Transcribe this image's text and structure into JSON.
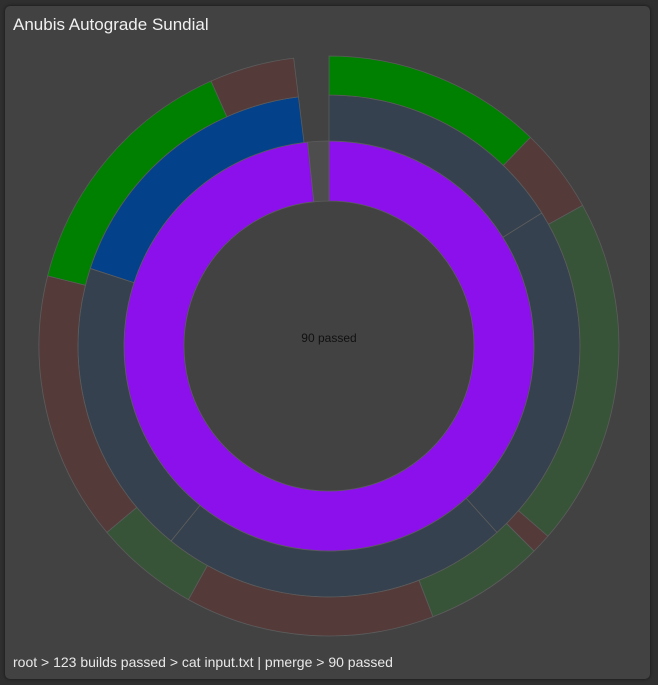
{
  "app": {
    "title": "Anubis Autograde Sundial"
  },
  "breadcrumb": "root > 123 builds passed > cat input.txt | pmerge > 90 passed",
  "center_label": "90 passed",
  "colors": {
    "passed_group": "#8b10ec",
    "build_blue": "#03418a",
    "slate": "#35414e",
    "pass_green": "#008000",
    "fail_red": "#553a3a",
    "muted_green": "#385438",
    "gap_gray": "#4d4d4d"
  },
  "chart_data": {
    "type": "sunburst",
    "title": "Anubis Autograde Sundial",
    "rings": [
      {
        "level": 1,
        "segments": [
          {
            "label": "90 passed",
            "start_deg": 0,
            "end_deg": 354,
            "color": "#8b10ec"
          },
          {
            "label": "",
            "start_deg": 354,
            "end_deg": 360,
            "color": "#4d4d4d"
          }
        ]
      },
      {
        "level": 2,
        "segments": [
          {
            "label": "",
            "start_deg": 0,
            "end_deg": 58,
            "color": "#35414e"
          },
          {
            "label": "",
            "start_deg": 58,
            "end_deg": 138,
            "color": "#35414e"
          },
          {
            "label": "",
            "start_deg": 138,
            "end_deg": 219,
            "color": "#35414e"
          },
          {
            "label": "",
            "start_deg": 219,
            "end_deg": 288,
            "color": "#35414e"
          },
          {
            "label": "",
            "start_deg": 288,
            "end_deg": 353,
            "color": "#03418a"
          }
        ]
      },
      {
        "level": 3,
        "segments": [
          {
            "label": "",
            "start_deg": 0,
            "end_deg": 44,
            "color": "#008000"
          },
          {
            "label": "",
            "start_deg": 44,
            "end_deg": 61,
            "color": "#553a3a"
          },
          {
            "label": "",
            "start_deg": 61,
            "end_deg": 131,
            "color": "#385438"
          },
          {
            "label": "",
            "start_deg": 131,
            "end_deg": 135,
            "color": "#553a3a"
          },
          {
            "label": "",
            "start_deg": 135,
            "end_deg": 159,
            "color": "#385438"
          },
          {
            "label": "",
            "start_deg": 159,
            "end_deg": 209,
            "color": "#553a3a"
          },
          {
            "label": "",
            "start_deg": 209,
            "end_deg": 230,
            "color": "#385438"
          },
          {
            "label": "",
            "start_deg": 230,
            "end_deg": 284,
            "color": "#553a3a"
          },
          {
            "label": "",
            "start_deg": 284,
            "end_deg": 336,
            "color": "#008000"
          },
          {
            "label": "",
            "start_deg": 336,
            "end_deg": 353,
            "color": "#553a3a"
          }
        ]
      }
    ]
  }
}
